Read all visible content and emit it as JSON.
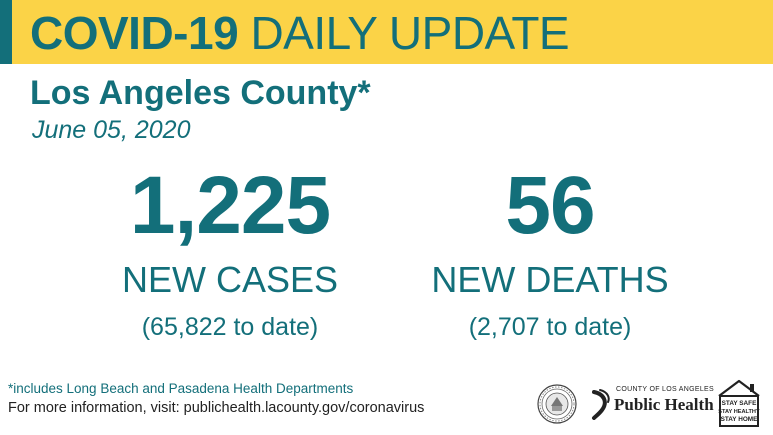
{
  "banner": {
    "title_bold": "COVID-19",
    "title_rest": "DAILY UPDATE"
  },
  "county": "Los Angeles County*",
  "date": "June 05, 2020",
  "cases": {
    "value": "1,225",
    "label": "NEW CASES",
    "to_date": "(65,822 to date)"
  },
  "deaths": {
    "value": "56",
    "label": "NEW DEATHS",
    "to_date": "(2,707 to date)"
  },
  "footer": {
    "footnote": "*includes Long Beach and Pasadena Health Departments",
    "more_info": "For more information, visit: publichealth.lacounty.gov/coronavirus"
  },
  "logos": {
    "public_health_small": "COUNTY OF LOS ANGELES",
    "public_health_big": "Public Health",
    "stay_lines": [
      "STAY SAFE",
      "STAY HEALTHY",
      "STAY HOME"
    ]
  },
  "colors": {
    "teal": "#136f7a",
    "yellow": "#fbd347"
  }
}
